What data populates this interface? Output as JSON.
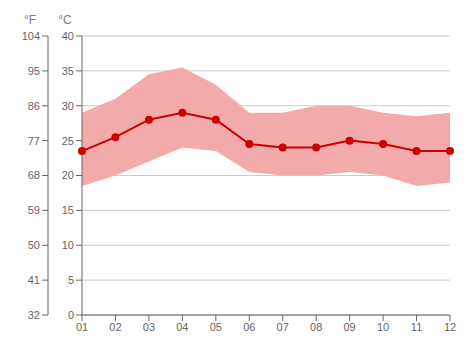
{
  "chart_data": {
    "type": "line",
    "categories": [
      "01",
      "02",
      "03",
      "04",
      "05",
      "06",
      "07",
      "08",
      "09",
      "10",
      "11",
      "12"
    ],
    "series": [
      {
        "type": "range",
        "low": [
          18.5,
          20.0,
          22.0,
          24.0,
          23.5,
          20.5,
          20.0,
          20.0,
          20.5,
          20.0,
          18.5,
          19.0
        ],
        "high": [
          29.0,
          31.0,
          34.5,
          35.5,
          33.0,
          29.0,
          29.0,
          30.0,
          30.0,
          29.0,
          28.5,
          29.0
        ],
        "color": "#f2aaaa"
      },
      {
        "type": "line",
        "values": [
          23.5,
          25.5,
          28.0,
          29.0,
          28.0,
          24.5,
          24.0,
          24.0,
          25.0,
          24.5,
          23.5,
          23.5
        ],
        "color": "#cc0000",
        "marker": "circle"
      }
    ],
    "y_label": "°C",
    "ylim": [
      0,
      40
    ],
    "yticks": [
      0,
      5,
      10,
      15,
      20,
      25,
      30,
      35,
      40
    ],
    "y2_label": "°F",
    "y2lim": [
      32,
      104
    ],
    "y2ticks": [
      32,
      41,
      50,
      59,
      68,
      77,
      86,
      95,
      104
    ],
    "grid": true
  }
}
